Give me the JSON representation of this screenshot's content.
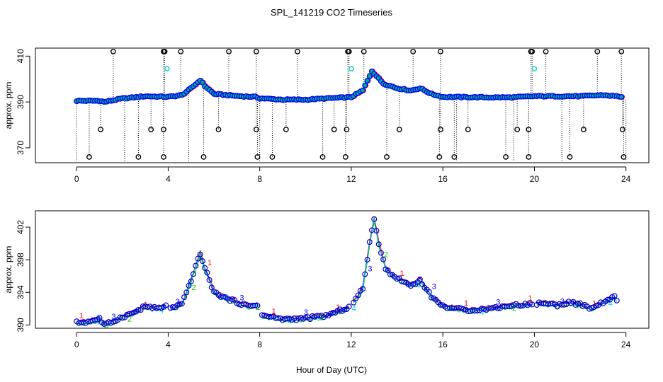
{
  "chart_data": {
    "title": "SPL_141219  CO2 Timeseries",
    "xlabel": "Hour of Day (UTC)",
    "series_colors": {
      "points_outline": "#0000ff",
      "points_fill": "#00aa88",
      "series1": "#ff0000",
      "series2": "#00cc00",
      "series3": "#0000ff",
      "series4": "#00cccc",
      "flag": "#000000",
      "flag_cyan": "#00cccc"
    },
    "panels": [
      {
        "type": "scatter",
        "ylabel": "approx. ppm",
        "xlim": [
          -1.8,
          25
        ],
        "ylim": [
          363.5,
          413.5
        ],
        "xticks": [
          0,
          4,
          8,
          12,
          16,
          20,
          24
        ],
        "yticks": [
          370,
          390,
          410
        ],
        "profile": [
          [
            0,
            390.5
          ],
          [
            1,
            390.5
          ],
          [
            1.2,
            390
          ],
          [
            2,
            391.5
          ],
          [
            3,
            392.5
          ],
          [
            4,
            392.2
          ],
          [
            4.6,
            393
          ],
          [
            5,
            396
          ],
          [
            5.4,
            399.5
          ],
          [
            5.6,
            397
          ],
          [
            6,
            393.5
          ],
          [
            7,
            392.6
          ],
          [
            7.8,
            392.2
          ],
          [
            8,
            391.6
          ],
          [
            9,
            391
          ],
          [
            10,
            391
          ],
          [
            11,
            391.6
          ],
          [
            12,
            392.1
          ],
          [
            12.5,
            395
          ],
          [
            12.9,
            403.5
          ],
          [
            13.4,
            398
          ],
          [
            14,
            396
          ],
          [
            14.6,
            395
          ],
          [
            15,
            396
          ],
          [
            15.5,
            393.5
          ],
          [
            16,
            392.2
          ],
          [
            18,
            392
          ],
          [
            19,
            392
          ],
          [
            20,
            392.5
          ],
          [
            21,
            392.5
          ],
          [
            22,
            392.5
          ],
          [
            23,
            393
          ],
          [
            23.8,
            392.3
          ]
        ],
        "flags_high": [
          1.6,
          3.8,
          3.85,
          4.55,
          6.65,
          7.85,
          9.65,
          11.85,
          11.9,
          12.55,
          14.7,
          15.9,
          19.85,
          19.9,
          20.5,
          22.75,
          23.8
        ],
        "flags_mid": [
          1.05,
          3.25,
          3.8,
          6.2,
          7.85,
          9.15,
          11.25,
          11.8,
          14.1,
          15.9,
          17.1,
          19.25,
          19.75,
          22.15,
          23.85
        ],
        "flags_low": [
          0.55,
          2.7,
          3.8,
          5.55,
          7.9,
          8.55,
          10.75,
          11.75,
          13.55,
          15.85,
          16.5,
          18.75,
          19.75,
          21.55,
          23.9
        ],
        "flag_values": {
          "high": 412,
          "mid": 378,
          "low": 366
        },
        "cyan_flags": [
          [
            3.95,
            404.5
          ],
          [
            12.0,
            404.5
          ],
          [
            20.0,
            404.5
          ]
        ]
      },
      {
        "type": "line",
        "ylabel": "approx. ppm",
        "xlim": [
          -1.8,
          25
        ],
        "ylim": [
          389.6,
          404
        ],
        "xticks": [
          0,
          4,
          8,
          12,
          16,
          20,
          24
        ],
        "yticks": [
          390,
          394,
          398,
          402
        ],
        "series": [
          {
            "name": "1",
            "color": "#ff0000"
          },
          {
            "name": "2",
            "color": "#00cc00"
          },
          {
            "name": "3",
            "color": "#0000ff"
          },
          {
            "name": "4",
            "color": "#00cccc"
          }
        ],
        "profile": [
          [
            0,
            390.3
          ],
          [
            0.5,
            390.4
          ],
          [
            1,
            390.8
          ],
          [
            1.2,
            390
          ],
          [
            1.5,
            390.3
          ],
          [
            2,
            391
          ],
          [
            2.5,
            391.5
          ],
          [
            3,
            392.3
          ],
          [
            3.5,
            392
          ],
          [
            3.9,
            392.3
          ],
          [
            4.1,
            392
          ],
          [
            4.6,
            392.5
          ],
          [
            5,
            395.5
          ],
          [
            5.4,
            398.8
          ],
          [
            5.6,
            397
          ],
          [
            6,
            394
          ],
          [
            6.5,
            393.3
          ],
          [
            7,
            392.8
          ],
          [
            7.5,
            392.3
          ],
          [
            7.9,
            392.5
          ],
          [
            8.1,
            391.2
          ],
          [
            9,
            390.7
          ],
          [
            10,
            390.8
          ],
          [
            11,
            391.2
          ],
          [
            12,
            392.3
          ],
          [
            12.5,
            394.5
          ],
          [
            12.8,
            400
          ],
          [
            13,
            403
          ],
          [
            13.2,
            400
          ],
          [
            13.5,
            397
          ],
          [
            13.8,
            396
          ],
          [
            14.2,
            395.5
          ],
          [
            14.6,
            394.8
          ],
          [
            15,
            395.5
          ],
          [
            15.5,
            393.5
          ],
          [
            16,
            392.3
          ],
          [
            17,
            391.8
          ],
          [
            18,
            392
          ],
          [
            19,
            392.4
          ],
          [
            20,
            392.6
          ],
          [
            20.5,
            392.7
          ],
          [
            21,
            392.4
          ],
          [
            21.5,
            392.8
          ],
          [
            22,
            392.5
          ],
          [
            22.5,
            392
          ],
          [
            23,
            392.8
          ],
          [
            23.5,
            393.4
          ],
          [
            23.8,
            392.2
          ]
        ],
        "gaps": [
          [
            3.95,
            4.05
          ],
          [
            7.95,
            8.05
          ],
          [
            11.95,
            12.05
          ],
          [
            19.95,
            20.05
          ]
        ]
      }
    ]
  }
}
